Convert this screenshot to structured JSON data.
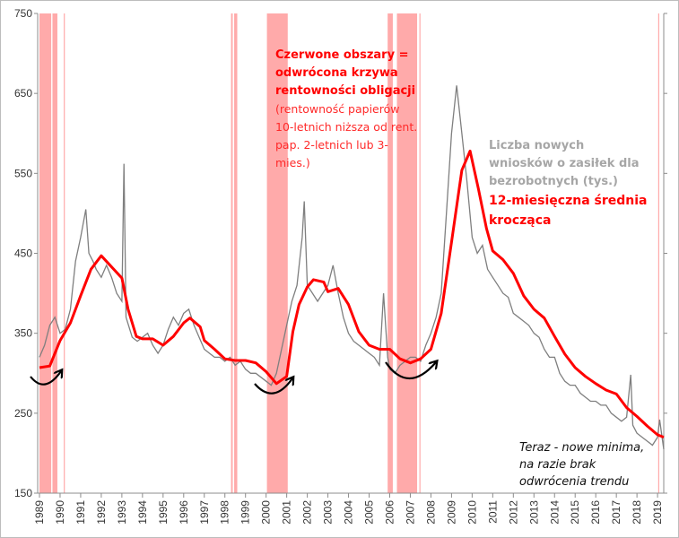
{
  "chart_data": {
    "type": "line",
    "title": "",
    "xlabel": "",
    "ylabel": "",
    "xlim": [
      1989,
      2019.5
    ],
    "ylim": [
      150,
      750
    ],
    "yticks": [
      150,
      250,
      350,
      450,
      550,
      650,
      750
    ],
    "xticks": [
      "1989",
      "1990",
      "1991",
      "1992",
      "1993",
      "1994",
      "1995",
      "1996",
      "1997",
      "1998",
      "1999",
      "2000",
      "2001",
      "2002",
      "2003",
      "2004",
      "2005",
      "2006",
      "2007",
      "2008",
      "2009",
      "2010",
      "2011",
      "2012",
      "2013",
      "2014",
      "2015",
      "2016",
      "2017",
      "2018",
      "2019"
    ],
    "grid": false,
    "colors": {
      "raw": "#7f7f7f",
      "ma": "#ff0000",
      "inversion": "#ffaaaa",
      "arrow": "#000000"
    },
    "inversion_periods": [
      [
        1989.0,
        1989.57
      ],
      [
        1989.63,
        1989.87
      ],
      [
        1990.18,
        1990.22
      ],
      [
        1998.3,
        1998.38
      ],
      [
        1998.45,
        1998.6
      ],
      [
        2000.04,
        2001.05
      ],
      [
        2005.9,
        2006.15
      ],
      [
        2006.35,
        2007.33
      ],
      [
        2007.44,
        2007.48
      ],
      [
        2019.03,
        2019.06
      ]
    ],
    "series": [
      {
        "name": "Liczba nowych wniosków o zasiłek dla bezrobotnych (tys.)",
        "points": [
          [
            1989,
            320
          ],
          [
            1989.25,
            335
          ],
          [
            1989.5,
            360
          ],
          [
            1989.75,
            370
          ],
          [
            1990,
            350
          ],
          [
            1990.25,
            355
          ],
          [
            1990.5,
            380
          ],
          [
            1990.75,
            440
          ],
          [
            1991,
            470
          ],
          [
            1991.25,
            505
          ],
          [
            1991.4,
            450
          ],
          [
            1991.6,
            440
          ],
          [
            1991.75,
            430
          ],
          [
            1992,
            420
          ],
          [
            1992.25,
            435
          ],
          [
            1992.5,
            420
          ],
          [
            1992.75,
            400
          ],
          [
            1993,
            390
          ],
          [
            1993.1,
            562
          ],
          [
            1993.2,
            370
          ],
          [
            1993.5,
            345
          ],
          [
            1993.75,
            340
          ],
          [
            1994,
            345
          ],
          [
            1994.25,
            350
          ],
          [
            1994.5,
            335
          ],
          [
            1994.75,
            325
          ],
          [
            1995,
            335
          ],
          [
            1995.25,
            355
          ],
          [
            1995.5,
            370
          ],
          [
            1995.75,
            360
          ],
          [
            1996,
            375
          ],
          [
            1996.25,
            380
          ],
          [
            1996.5,
            360
          ],
          [
            1996.75,
            345
          ],
          [
            1997,
            330
          ],
          [
            1997.25,
            325
          ],
          [
            1997.5,
            320
          ],
          [
            1997.75,
            320
          ],
          [
            1998,
            315
          ],
          [
            1998.25,
            320
          ],
          [
            1998.5,
            310
          ],
          [
            1998.75,
            315
          ],
          [
            1999,
            305
          ],
          [
            1999.25,
            300
          ],
          [
            1999.5,
            300
          ],
          [
            1999.75,
            295
          ],
          [
            2000,
            290
          ],
          [
            2000.25,
            285
          ],
          [
            2000.5,
            300
          ],
          [
            2000.75,
            330
          ],
          [
            2001,
            360
          ],
          [
            2001.25,
            390
          ],
          [
            2001.5,
            410
          ],
          [
            2001.75,
            470
          ],
          [
            2001.85,
            515
          ],
          [
            2002,
            410
          ],
          [
            2002.25,
            400
          ],
          [
            2002.5,
            390
          ],
          [
            2002.75,
            400
          ],
          [
            2003,
            410
          ],
          [
            2003.25,
            435
          ],
          [
            2003.5,
            400
          ],
          [
            2003.75,
            370
          ],
          [
            2004,
            350
          ],
          [
            2004.25,
            340
          ],
          [
            2004.5,
            335
          ],
          [
            2004.75,
            330
          ],
          [
            2005,
            325
          ],
          [
            2005.25,
            320
          ],
          [
            2005.5,
            310
          ],
          [
            2005.7,
            400
          ],
          [
            2005.9,
            320
          ],
          [
            2006,
            305
          ],
          [
            2006.25,
            300
          ],
          [
            2006.5,
            310
          ],
          [
            2006.75,
            315
          ],
          [
            2007,
            320
          ],
          [
            2007.25,
            320
          ],
          [
            2007.5,
            315
          ],
          [
            2007.75,
            335
          ],
          [
            2008,
            350
          ],
          [
            2008.25,
            370
          ],
          [
            2008.5,
            400
          ],
          [
            2008.75,
            500
          ],
          [
            2009,
            600
          ],
          [
            2009.25,
            660
          ],
          [
            2009.5,
            600
          ],
          [
            2009.75,
            540
          ],
          [
            2010,
            470
          ],
          [
            2010.25,
            450
          ],
          [
            2010.5,
            460
          ],
          [
            2010.75,
            430
          ],
          [
            2011,
            420
          ],
          [
            2011.25,
            410
          ],
          [
            2011.5,
            400
          ],
          [
            2011.75,
            395
          ],
          [
            2012,
            375
          ],
          [
            2012.25,
            370
          ],
          [
            2012.5,
            365
          ],
          [
            2012.75,
            360
          ],
          [
            2013,
            350
          ],
          [
            2013.25,
            345
          ],
          [
            2013.5,
            330
          ],
          [
            2013.75,
            320
          ],
          [
            2014,
            320
          ],
          [
            2014.25,
            300
          ],
          [
            2014.5,
            290
          ],
          [
            2014.75,
            285
          ],
          [
            2015,
            285
          ],
          [
            2015.25,
            275
          ],
          [
            2015.5,
            270
          ],
          [
            2015.75,
            265
          ],
          [
            2016,
            265
          ],
          [
            2016.25,
            260
          ],
          [
            2016.5,
            260
          ],
          [
            2016.75,
            250
          ],
          [
            2017,
            245
          ],
          [
            2017.25,
            240
          ],
          [
            2017.5,
            245
          ],
          [
            2017.7,
            298
          ],
          [
            2017.8,
            235
          ],
          [
            2018,
            225
          ],
          [
            2018.25,
            220
          ],
          [
            2018.5,
            215
          ],
          [
            2018.75,
            210
          ],
          [
            2019,
            220
          ],
          [
            2019.1,
            242
          ],
          [
            2019.3,
            205
          ]
        ]
      },
      {
        "name": "12-miesięczna średnia krocząca",
        "points": [
          [
            1989.0,
            307
          ],
          [
            1989.5,
            309
          ],
          [
            1990,
            341
          ],
          [
            1990.5,
            363
          ],
          [
            1991,
            397
          ],
          [
            1991.5,
            430
          ],
          [
            1992,
            447
          ],
          [
            1992.5,
            433
          ],
          [
            1993,
            419
          ],
          [
            1993.3,
            380
          ],
          [
            1993.7,
            346
          ],
          [
            1994,
            343
          ],
          [
            1994.5,
            343
          ],
          [
            1995,
            335
          ],
          [
            1995.5,
            346
          ],
          [
            1996,
            363
          ],
          [
            1996.3,
            369
          ],
          [
            1996.8,
            358
          ],
          [
            1997,
            341
          ],
          [
            1997.5,
            330
          ],
          [
            1998,
            318
          ],
          [
            1998.5,
            316
          ],
          [
            1999,
            316
          ],
          [
            1999.5,
            313
          ],
          [
            2000,
            302
          ],
          [
            2000.5,
            287
          ],
          [
            2001,
            296
          ],
          [
            2001.3,
            352
          ],
          [
            2001.6,
            386
          ],
          [
            2002,
            408
          ],
          [
            2002.3,
            417
          ],
          [
            2002.8,
            414
          ],
          [
            2003,
            402
          ],
          [
            2003.5,
            406
          ],
          [
            2004,
            386
          ],
          [
            2004.5,
            352
          ],
          [
            2005,
            335
          ],
          [
            2005.5,
            330
          ],
          [
            2006,
            330
          ],
          [
            2006.5,
            318
          ],
          [
            2007,
            313
          ],
          [
            2007.5,
            318
          ],
          [
            2008,
            330
          ],
          [
            2008.5,
            375
          ],
          [
            2009,
            464
          ],
          [
            2009.5,
            554
          ],
          [
            2009.9,
            578
          ],
          [
            2010.3,
            531
          ],
          [
            2010.7,
            481
          ],
          [
            2011,
            453
          ],
          [
            2011.5,
            442
          ],
          [
            2012,
            425
          ],
          [
            2012.5,
            397
          ],
          [
            2013,
            380
          ],
          [
            2013.5,
            369
          ],
          [
            2014,
            346
          ],
          [
            2014.5,
            324
          ],
          [
            2015,
            307
          ],
          [
            2015.5,
            296
          ],
          [
            2016,
            287
          ],
          [
            2016.5,
            279
          ],
          [
            2017,
            274
          ],
          [
            2017.5,
            257
          ],
          [
            2018,
            246
          ],
          [
            2018.5,
            234
          ],
          [
            2019,
            223
          ],
          [
            2019.3,
            220
          ]
        ]
      }
    ],
    "annotations": {
      "inversion_title": [
        "Czerwone obszary =",
        "odwrócona krzywa",
        "rentowności obligacji"
      ],
      "inversion_note": [
        "(rentowność papierów",
        "10-letnich niższa od rent.",
        "pap. 2-letnich lub 3-",
        "mies.)"
      ],
      "raw_label": [
        "Liczba nowych",
        "wniosków o zasiłek dla",
        "bezrobotnych (tys.)"
      ],
      "ma_label": [
        "12-miesięczna średnia",
        "krocząca"
      ],
      "now_note": [
        "Teraz - nowe minima,",
        "na razie brak",
        "odwrócenia trendu"
      ]
    }
  }
}
